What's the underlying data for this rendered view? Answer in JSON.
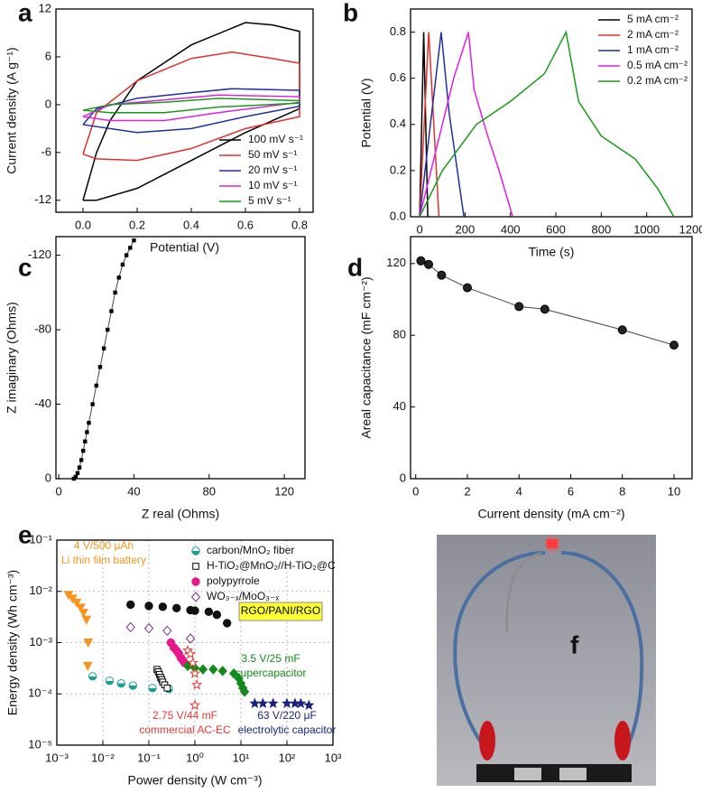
{
  "chart_data": [
    {
      "panel": "a",
      "type": "line",
      "xlabel": "Potential (V)",
      "ylabel": "Current density (A g⁻¹)",
      "xlim": [
        -0.1,
        0.85
      ],
      "ylim": [
        -13.5,
        12
      ],
      "xticks": [
        {
          "value": 0,
          "label": "0.0"
        },
        {
          "value": 0.2,
          "label": "0.2"
        },
        {
          "value": 0.4,
          "label": "0.4"
        },
        {
          "value": 0.6,
          "label": "0.6"
        },
        {
          "value": 0.8,
          "label": "0.8"
        }
      ],
      "yticks": [
        -12,
        -6,
        0,
        6,
        12
      ],
      "legend": "lower right",
      "series": [
        {
          "name": "100 mV s⁻¹",
          "color": "#000000",
          "x": [
            0,
            0.05,
            0.1,
            0.2,
            0.4,
            0.6,
            0.7,
            0.8,
            0.8,
            0.6,
            0.4,
            0.2,
            0.05,
            0
          ],
          "values": [
            -12,
            -6,
            -2,
            3,
            7.5,
            10.3,
            10,
            9.2,
            -0.5,
            -3.5,
            -7,
            -10.5,
            -12,
            -12
          ]
        },
        {
          "name": "50 mV s⁻¹",
          "color": "#e03030",
          "x": [
            0,
            0.05,
            0.2,
            0.4,
            0.55,
            0.7,
            0.8,
            0.8,
            0.6,
            0.4,
            0.2,
            0.05,
            0
          ],
          "values": [
            -6.2,
            -1,
            3,
            5.8,
            6.6,
            5.8,
            5.2,
            -1.5,
            -3,
            -5.5,
            -7,
            -6.8,
            -6.2
          ]
        },
        {
          "name": "20 mV s⁻¹",
          "color": "#1f2fa0",
          "x": [
            0,
            0.05,
            0.2,
            0.4,
            0.55,
            0.8,
            0.8,
            0.6,
            0.4,
            0.2,
            0
          ],
          "values": [
            -2.5,
            -0.5,
            0.8,
            1.5,
            2,
            1.8,
            -0.2,
            -1.5,
            -3,
            -3.5,
            -2.5
          ]
        },
        {
          "name": "10 mV s⁻¹",
          "color": "#e020e0",
          "x": [
            0,
            0.1,
            0.3,
            0.5,
            0.8,
            0.8,
            0.5,
            0.3,
            0.1,
            0
          ],
          "values": [
            -1.5,
            0,
            0.6,
            1.2,
            1,
            0.3,
            -1,
            -2,
            -2,
            -1.5
          ]
        },
        {
          "name": "5 mV s⁻¹",
          "color": "#1a9a1a",
          "x": [
            0,
            0.1,
            0.3,
            0.5,
            0.8,
            0.8,
            0.5,
            0.3,
            0.1,
            0
          ],
          "values": [
            -0.7,
            0,
            0.3,
            0.8,
            0.5,
            0.2,
            -0.3,
            -1,
            -1,
            -0.7
          ]
        }
      ]
    },
    {
      "panel": "b",
      "type": "line",
      "xlabel": "Time (s)",
      "ylabel": "Potential (V)",
      "xlim": [
        -40,
        1200
      ],
      "ylim": [
        0,
        0.9
      ],
      "xticks": [
        0,
        200,
        400,
        600,
        800,
        1000,
        1200
      ],
      "yticks": [
        {
          "value": 0,
          "label": "0.0"
        },
        {
          "value": 0.2,
          "label": "0.2"
        },
        {
          "value": 0.4,
          "label": "0.4"
        },
        {
          "value": 0.6,
          "label": "0.6"
        },
        {
          "value": 0.8,
          "label": "0.8"
        }
      ],
      "legend": "upper right",
      "series": [
        {
          "name": "5 mA cm⁻²",
          "color": "#000000",
          "x": [
            0,
            18,
            36
          ],
          "values": [
            0,
            0.8,
            0
          ]
        },
        {
          "name": "2 mA cm⁻²",
          "color": "#e03030",
          "x": [
            0,
            40,
            85
          ],
          "values": [
            0,
            0.8,
            0
          ]
        },
        {
          "name": "1 mA cm⁻²",
          "color": "#1f2fa0",
          "x": [
            0,
            95,
            130,
            195
          ],
          "values": [
            0,
            0.8,
            0.45,
            0
          ]
        },
        {
          "name": "0.5 mA cm⁻²",
          "color": "#e020e0",
          "x": [
            0,
            50,
            100,
            150,
            215,
            240,
            300,
            350,
            410
          ],
          "values": [
            0,
            0.2,
            0.4,
            0.6,
            0.8,
            0.55,
            0.35,
            0.2,
            0
          ]
        },
        {
          "name": "0.2 mA cm⁻²",
          "color": "#1a9a1a",
          "x": [
            0,
            100,
            250,
            400,
            550,
            645,
            700,
            800,
            950,
            1050,
            1120
          ],
          "values": [
            0,
            0.2,
            0.4,
            0.5,
            0.62,
            0.8,
            0.5,
            0.35,
            0.25,
            0.12,
            0
          ]
        }
      ]
    },
    {
      "panel": "c",
      "type": "line",
      "xlabel": "Z real (Ohms)",
      "ylabel": "Z imaginary (Ohms)",
      "xlim": [
        -1.5,
        131
      ],
      "ylim": [
        0,
        -130
      ],
      "xticks": [
        0,
        40,
        80,
        120
      ],
      "yticks": [
        0,
        -40,
        -80,
        -120
      ],
      "series": [
        {
          "color": "#000000",
          "marker": "square",
          "x": [
            8,
            9,
            10,
            11,
            12,
            13,
            14,
            15,
            16,
            18,
            20,
            22,
            24,
            26,
            28,
            30,
            32,
            34,
            36,
            38,
            40
          ],
          "values": [
            0,
            -1,
            -3,
            -6,
            -10,
            -15,
            -20,
            -25,
            -30,
            -40,
            -50,
            -60,
            -70,
            -80,
            -90,
            -100,
            -108,
            -115,
            -120,
            -124,
            -128
          ]
        }
      ]
    },
    {
      "panel": "d",
      "type": "line",
      "xlabel": "Current density (mA cm⁻²)",
      "ylabel": "Areal capacitance (mF cm⁻²)",
      "xlim": [
        -0.2,
        10.7
      ],
      "ylim": [
        0,
        135
      ],
      "xticks": [
        0,
        2,
        4,
        6,
        8,
        10
      ],
      "yticks": [
        0,
        40,
        80,
        120
      ],
      "series": [
        {
          "color": "#000000",
          "marker": "circle",
          "x": [
            0.2,
            0.5,
            1,
            2,
            4,
            5,
            8,
            10
          ],
          "values": [
            121.5,
            119.5,
            113.5,
            106.5,
            96,
            94.5,
            83,
            74.5
          ]
        }
      ]
    },
    {
      "panel": "e",
      "type": "scatter",
      "xlabel": "Power density (W cm⁻³)",
      "ylabel": "Energy density (Wh cm⁻³)",
      "xscale": "log",
      "yscale": "log",
      "grid": true,
      "legend": "upper right",
      "xlim": [
        0.001,
        1000
      ],
      "ylim": [
        1e-05,
        0.1
      ],
      "xticks": [
        {
          "value": 0.001,
          "label": "10⁻³"
        },
        {
          "value": 0.01,
          "label": "10⁻²"
        },
        {
          "value": 0.1,
          "label": "10⁻¹"
        },
        {
          "value": 1,
          "label": "10⁰"
        },
        {
          "value": 10,
          "label": "10¹"
        },
        {
          "value": 100,
          "label": "10²"
        },
        {
          "value": 1000,
          "label": "10³"
        }
      ],
      "yticks": [
        {
          "value": 1e-05,
          "label": "10⁻⁵"
        },
        {
          "value": 0.0001,
          "label": "10⁻⁴"
        },
        {
          "value": 0.001,
          "label": "10⁻³"
        },
        {
          "value": 0.01,
          "label": "10⁻²"
        },
        {
          "value": 0.1,
          "label": "10⁻¹"
        }
      ],
      "series": [
        {
          "labels": [
            "4 V/500 μAh",
            "Li thin film battery"
          ],
          "marker": "triangle-down",
          "filled": true,
          "color": "#f7941d",
          "x": [
            0.0018,
            0.0022,
            0.0027,
            0.0033,
            0.0038,
            0.0044,
            0.0048,
            0.0047
          ],
          "values": [
            0.0085,
            0.0072,
            0.006,
            0.0048,
            0.0038,
            0.0028,
            0.001,
            0.00035
          ]
        },
        {
          "name": "carbon/MnO₂ fiber",
          "marker": "half-circle",
          "filled": true,
          "color": "#1a9e96",
          "x": [
            0.006,
            0.014,
            0.025,
            0.045,
            0.12,
            0.27
          ],
          "values": [
            0.00022,
            0.00018,
            0.00016,
            0.000145,
            0.00013,
            0.000125
          ]
        },
        {
          "name": "H-TiO₂@MnO₂//H-TiO₂@C",
          "marker": "square",
          "filled": false,
          "color": "#000000",
          "x": [
            0.15,
            0.16,
            0.17,
            0.18,
            0.19,
            0.2,
            0.22,
            0.25
          ],
          "values": [
            0.0003,
            0.00027,
            0.00024,
            0.00021,
            0.00019,
            0.00017,
            0.00015,
            0.00013
          ]
        },
        {
          "name": "polypyrrole",
          "marker": "circle",
          "filled": true,
          "color": "#e8198b",
          "x": [
            0.3,
            0.35,
            0.4,
            0.45,
            0.5,
            0.55,
            0.6
          ],
          "values": [
            0.001,
            0.0008,
            0.0007,
            0.0006,
            0.0005,
            0.00045,
            0.0004
          ]
        },
        {
          "name": "WO₃₋ₓ/MoO₃₋ₓ",
          "marker": "diamond",
          "filled": false,
          "color": "#7b2d8e",
          "x": [
            0.04,
            0.1,
            0.25,
            0.8
          ],
          "values": [
            0.002,
            0.0019,
            0.0017,
            0.0012
          ]
        },
        {
          "labels": [
            "RGO/PANI/RGO"
          ],
          "boxed": true,
          "marker": "circle",
          "filled": true,
          "color": "#111111",
          "x": [
            0.04,
            0.1,
            0.2,
            0.4,
            0.8,
            1,
            2,
            3,
            5
          ],
          "values": [
            0.0055,
            0.0052,
            0.005,
            0.0047,
            0.0043,
            0.0042,
            0.004,
            0.0035,
            0.0024
          ]
        },
        {
          "labels": [
            "3.5 V/25 mF",
            "supercapacitor"
          ],
          "marker": "diamond",
          "filled": true,
          "color": "#138a1b",
          "x": [
            0.7,
            1,
            1.5,
            2.5,
            4,
            7,
            9,
            10,
            11,
            12
          ],
          "values": [
            0.00035,
            0.00032,
            0.0003,
            0.0003,
            0.00028,
            0.00025,
            0.0002,
            0.00016,
            0.00013,
            0.00011
          ]
        },
        {
          "labels": [
            "2.75 V/44 mF",
            "commercial AC-EC"
          ],
          "marker": "star",
          "filled": false,
          "color": "#e53935",
          "x": [
            0.7,
            0.8,
            0.9,
            1,
            1.1,
            1
          ],
          "values": [
            0.0007,
            0.0006,
            0.0004,
            0.00025,
            0.00015,
            6e-05
          ]
        },
        {
          "labels": [
            "63 V/220 μF",
            "electrolytic capacitor"
          ],
          "marker": "star",
          "filled": true,
          "color": "#1a237e",
          "x": [
            20,
            30,
            50,
            100,
            150,
            200,
            300
          ],
          "values": [
            6.5e-05,
            6.5e-05,
            6.5e-05,
            6.5e-05,
            6.5e-05,
            6.5e-05,
            6e-05
          ]
        }
      ]
    },
    {
      "panel": "f",
      "type": "photo"
    }
  ]
}
